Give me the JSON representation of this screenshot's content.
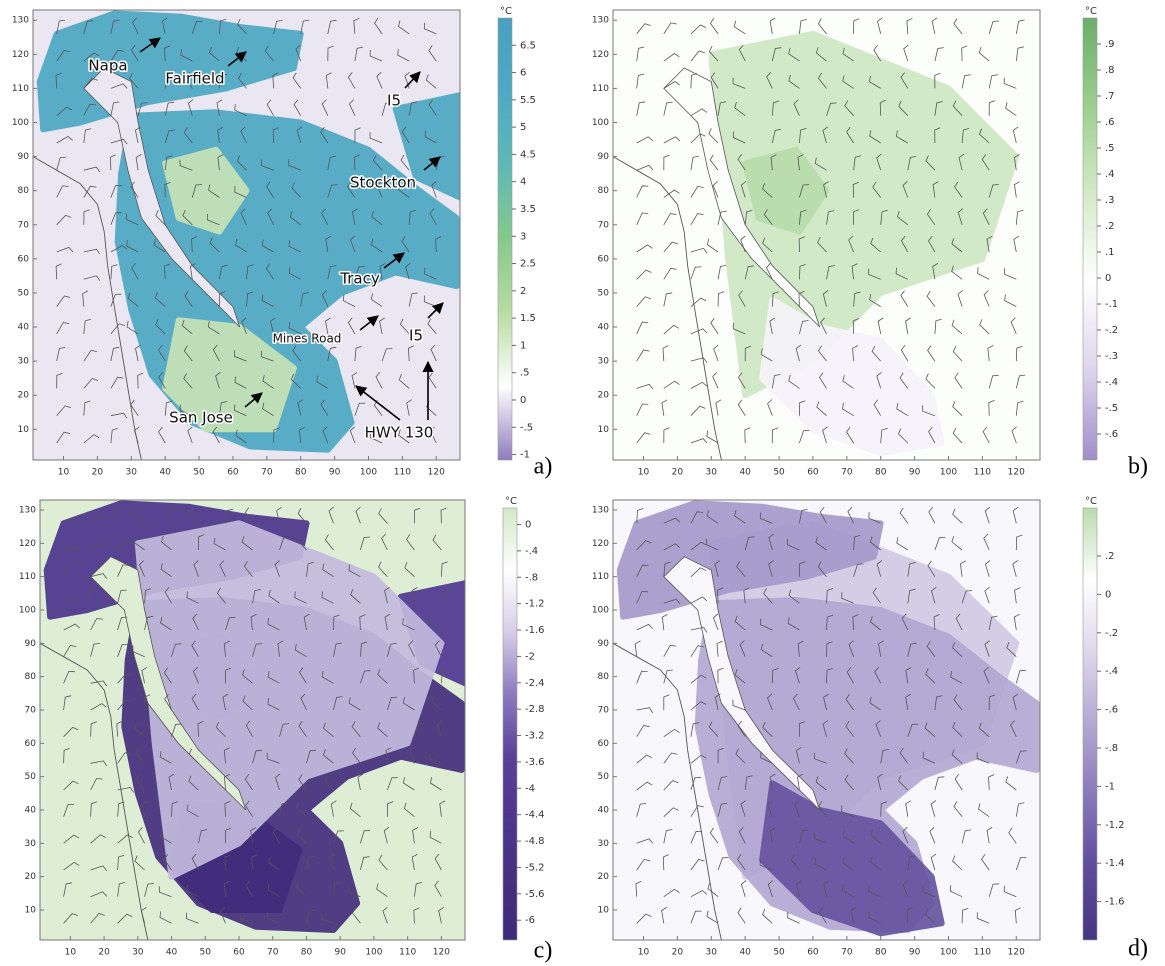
{
  "chart_data": [
    {
      "type": "map",
      "panel_label": "a)",
      "xlim": [
        1,
        127
      ],
      "ylim": [
        1,
        133
      ],
      "xticks": [
        10,
        20,
        30,
        40,
        50,
        60,
        70,
        80,
        90,
        100,
        110,
        120
      ],
      "yticks": [
        10,
        20,
        30,
        40,
        50,
        60,
        70,
        80,
        90,
        100,
        110,
        120,
        130
      ],
      "colorbar": {
        "unit": "°C",
        "lim": [
          -1.1,
          7.0
        ],
        "ticks": [
          6.5,
          6,
          5.5,
          5,
          4.5,
          4,
          3.5,
          3,
          2.5,
          2,
          1.5,
          1,
          {
            "value": 0.5,
            "label": ".5"
          },
          0,
          {
            "value": -0.5,
            "label": "-.5"
          },
          -1
        ],
        "colors": [
          "#8f7cbf",
          "#ffffff",
          "#b8dca2",
          "#86c98c",
          "#5fb8b6",
          "#4ea9c4",
          "#4a9fbf"
        ]
      },
      "annotations": [
        "Napa",
        "Fairfield",
        "I5",
        "Stockton",
        "Tracy",
        "Mines Road",
        "I5",
        "San Jose",
        "HWY 130"
      ]
    },
    {
      "type": "map",
      "panel_label": "b)",
      "xlim": [
        1,
        127
      ],
      "ylim": [
        1,
        133
      ],
      "xticks": [
        10,
        20,
        30,
        40,
        50,
        60,
        70,
        80,
        90,
        100,
        110,
        120
      ],
      "yticks": [
        10,
        20,
        30,
        40,
        50,
        60,
        70,
        80,
        90,
        100,
        110,
        120,
        130
      ],
      "colorbar": {
        "unit": "°C",
        "lim": [
          -0.7,
          1.0
        ],
        "ticks": [
          {
            "value": 0.9,
            "label": ".9"
          },
          {
            "value": 0.8,
            "label": ".8"
          },
          {
            "value": 0.7,
            "label": ".7"
          },
          {
            "value": 0.6,
            "label": ".6"
          },
          {
            "value": 0.5,
            "label": ".5"
          },
          {
            "value": 0.4,
            "label": ".4"
          },
          {
            "value": 0.3,
            "label": ".3"
          },
          {
            "value": 0.2,
            "label": ".2"
          },
          {
            "value": 0.1,
            "label": ".1"
          },
          0,
          {
            "value": -0.1,
            "label": "-.1"
          },
          {
            "value": -0.2,
            "label": "-.2"
          },
          {
            "value": -0.3,
            "label": "-.3"
          },
          {
            "value": -0.4,
            "label": "-.4"
          },
          {
            "value": -0.5,
            "label": "-.5"
          },
          {
            "value": -0.6,
            "label": "-.6"
          }
        ],
        "colors": [
          "#a08dc8",
          "#dcd4ec",
          "#ffffff",
          "#d4ebc8",
          "#9ccf8e",
          "#6aae6a"
        ]
      }
    },
    {
      "type": "map",
      "panel_label": "c)",
      "xlim": [
        1,
        127
      ],
      "ylim": [
        1,
        133
      ],
      "xticks": [
        10,
        20,
        30,
        40,
        50,
        60,
        70,
        80,
        90,
        100,
        110,
        120
      ],
      "yticks": [
        10,
        20,
        30,
        40,
        50,
        60,
        70,
        80,
        90,
        100,
        110,
        120,
        130
      ],
      "colorbar": {
        "unit": "°C",
        "lim": [
          -6.3,
          0.25
        ],
        "ticks": [
          0,
          {
            "value": -0.4,
            "label": "-.4"
          },
          {
            "value": -0.8,
            "label": "-.8"
          },
          -1.2,
          -1.6,
          -2,
          -2.4,
          -2.8,
          -3.2,
          -3.6,
          -4,
          -4.4,
          -4.8,
          -5.2,
          -5.6,
          -6
        ],
        "colors": [
          "#3d2a7a",
          "#45307f",
          "#4e3690",
          "#5a429a",
          "#8c7cbf",
          "#d6cfe8",
          "#ffffff",
          "#d2e8c6"
        ]
      }
    },
    {
      "type": "map",
      "panel_label": "d)",
      "xlim": [
        1,
        127
      ],
      "ylim": [
        1,
        133
      ],
      "xticks": [
        10,
        20,
        30,
        40,
        50,
        60,
        70,
        80,
        90,
        100,
        110,
        120
      ],
      "yticks": [
        10,
        20,
        30,
        40,
        50,
        60,
        70,
        80,
        90,
        100,
        110,
        120,
        130
      ],
      "colorbar": {
        "unit": "°C",
        "lim": [
          -1.8,
          0.45
        ],
        "ticks": [
          {
            "value": 0.2,
            "label": ".2"
          },
          0,
          {
            "value": -0.2,
            "label": "-.2"
          },
          {
            "value": -0.4,
            "label": "-.4"
          },
          {
            "value": -0.6,
            "label": "-.6"
          },
          {
            "value": -0.8,
            "label": "-.8"
          },
          -1,
          -1.2,
          -1.4,
          -1.6
        ],
        "colors": [
          "#46357f",
          "#5e4c9a",
          "#8878b8",
          "#b3a8d3",
          "#ddd7ec",
          "#ffffff",
          "#b9dcae"
        ]
      }
    }
  ]
}
